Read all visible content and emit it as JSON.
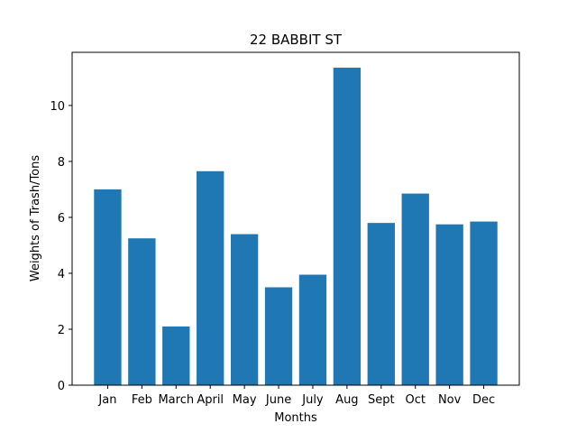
{
  "chart_data": {
    "type": "bar",
    "title": "22 BABBIT ST",
    "xlabel": "Months",
    "ylabel": "Weights of Trash/Tons",
    "categories": [
      "Jan",
      "Feb",
      "March",
      "April",
      "May",
      "June",
      "July",
      "Aug",
      "Sept",
      "Oct",
      "Nov",
      "Dec"
    ],
    "values": [
      7.0,
      5.25,
      2.1,
      7.65,
      5.4,
      3.5,
      3.95,
      11.35,
      5.8,
      6.85,
      5.75,
      5.85
    ],
    "ylim": [
      0,
      11.9
    ],
    "yticks": [
      0,
      2,
      4,
      6,
      8,
      10
    ],
    "bar_color": "#1f77b4",
    "grid": false,
    "legend": "none"
  }
}
